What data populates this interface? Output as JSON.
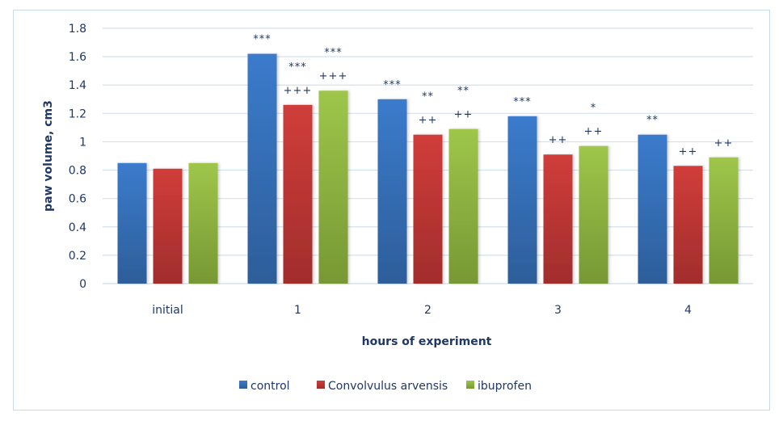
{
  "chart_data": {
    "type": "bar",
    "title": "",
    "xlabel": "hours of experiment",
    "ylabel": "paw volume, cm3",
    "ylim": [
      0,
      1.8
    ],
    "yticks": [
      "0",
      "0.2",
      "0.4",
      "0.6",
      "0.8",
      "1",
      "1.2",
      "1.4",
      "1.6",
      "1.8"
    ],
    "ytick_values": [
      0,
      0.2,
      0.4,
      0.6,
      0.8,
      1.0,
      1.2,
      1.4,
      1.6,
      1.8
    ],
    "grid": true,
    "legend_position": "bottom",
    "categories": [
      "initial",
      "1",
      "2",
      "3",
      "4"
    ],
    "series": [
      {
        "name": "control",
        "color": "#3b78c7",
        "values": [
          0.85,
          1.62,
          1.3,
          1.18,
          1.05
        ],
        "annotations": [
          [],
          [
            "***"
          ],
          [
            "***"
          ],
          [
            "***"
          ],
          [
            "**"
          ]
        ]
      },
      {
        "name": "Convolvulus arvensis",
        "color": "#cc3a38",
        "values": [
          0.81,
          1.26,
          1.05,
          0.91,
          0.83
        ],
        "annotations": [
          [],
          [
            "***",
            "+++"
          ],
          [
            "**",
            "++"
          ],
          [
            "++"
          ],
          [
            "++"
          ]
        ]
      },
      {
        "name": "ibuprofen",
        "color": "#9bc34a",
        "values": [
          0.85,
          1.36,
          1.09,
          0.97,
          0.89
        ],
        "annotations": [
          [],
          [
            "***",
            "+++"
          ],
          [
            "**",
            "++"
          ],
          [
            "*",
            "++"
          ],
          [
            "++"
          ]
        ]
      }
    ]
  }
}
